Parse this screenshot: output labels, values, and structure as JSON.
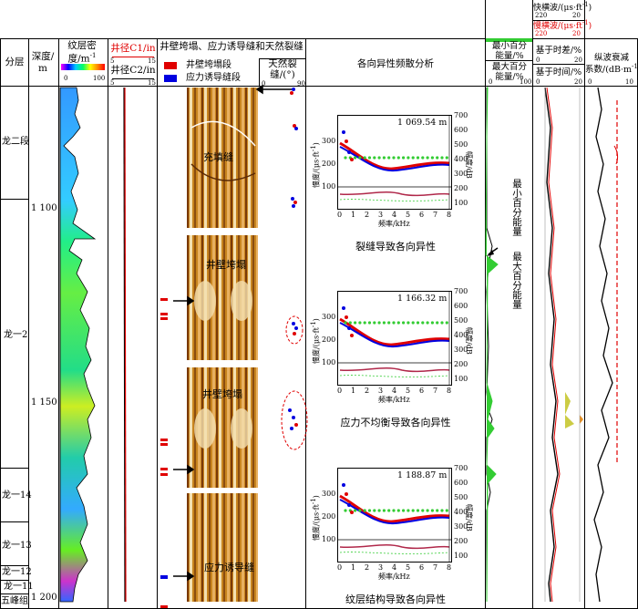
{
  "headers": {
    "formation": "分层",
    "depth_l1": "深度/",
    "depth_l2": "m",
    "lam_l1": "纹层密",
    "lam_l2": "度/m",
    "lam_sup": "-1",
    "lam_scale_min": "0",
    "lam_scale_max": "100",
    "c1": "井径C1/in",
    "c2": "井径C2/in",
    "c_min": "5",
    "c_max": "15",
    "wall": "井壁垮塌、应力诱导缝和天然裂缝",
    "legend_collapse": "井壁垮塌段",
    "legend_stress": "应力诱导缝段",
    "natural_l1": "天然裂",
    "natural_l2": "缝/(°)",
    "nat_min": "0",
    "nat_max": "90",
    "aniso": "各向异性频散分析",
    "minpct_l1": "最小百分",
    "minpct_l2": "能量/%",
    "maxpct_l1": "最大百分",
    "maxpct_l2": "能量/%",
    "pct_min": "0",
    "pct_max": "100",
    "fast": "快横波/(μs·ft",
    "fast_sup": "-1",
    "slow": "慢横波/(μs·ft",
    "slow_sup": "-1",
    "sw_min": "220",
    "sw_max": "20",
    "aniso_t": "基于时差/%",
    "aniso_f": "基于时间/%",
    "at_min": "0",
    "at_max": "20",
    "atten_l1": "纵波衰减",
    "atten_l2": "系数/(dB·m",
    "atten_sup": "-1",
    "atten_l3": ")",
    "atten_min": "0",
    "atten_max": "10"
  },
  "formations": [
    "龙二段",
    "龙一2",
    "龙一14",
    "龙一13",
    "龙一12",
    "龙一11",
    "五峰组"
  ],
  "depth_ticks": [
    "1 100",
    "1 150",
    "1 200"
  ],
  "image_labels": [
    "充填缝",
    "井壁垮塌",
    "井壁垮塌",
    "应力诱导缝"
  ],
  "energy_labels": {
    "min": "最小百分能量",
    "max": "最大百分能量"
  },
  "dispersion": [
    {
      "depth": "1 069.54 m",
      "caption": "裂缝导致各向异性"
    },
    {
      "depth": "1 166.32 m",
      "caption": "应力不均衡导致各向异性"
    },
    {
      "depth": "1 188.87 m",
      "caption": "纹层结构导致各向异性"
    }
  ],
  "disp_axes": {
    "ylabel": "慢度/(μs·ft",
    "ylabel_sup": "-1",
    "xlabel": "频率/kHz",
    "y2label": "幅度/dB",
    "y_ticks": [
      "100",
      "200",
      "300"
    ],
    "y2_ticks": [
      "100",
      "200",
      "300",
      "400",
      "500",
      "600",
      "700"
    ],
    "x_ticks": [
      "0",
      "1",
      "2",
      "3",
      "4",
      "5",
      "6",
      "7",
      "8"
    ]
  },
  "colors": {
    "collapse": "#e00000",
    "stress": "#0000e0",
    "energy": "#33cc33",
    "slow": "#e00000",
    "fast": "#000000"
  }
}
